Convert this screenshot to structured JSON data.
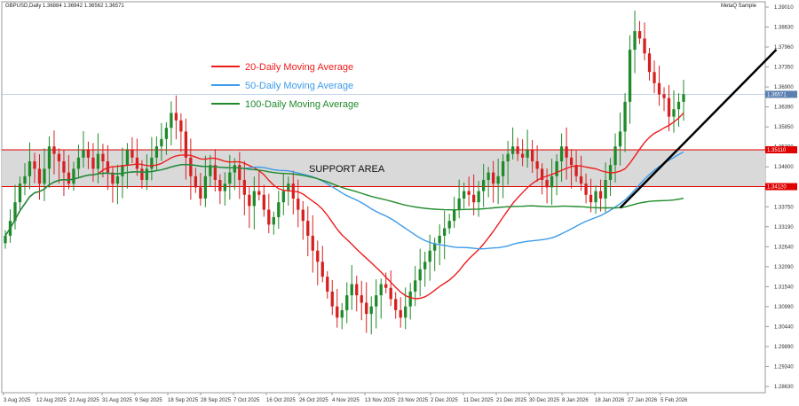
{
  "header": {
    "symbol_info": "GBPUSD,Daily  1.36884 1.36942 1.36562 1.36571",
    "watermark": "MetaQ Sample"
  },
  "legend": [
    {
      "label": "20-Daily Moving Average",
      "color": "#ee1c1c"
    },
    {
      "label": "50-Daily Moving Average",
      "color": "#3d9be9"
    },
    {
      "label": "100-Daily Moving Average",
      "color": "#1f8a2a"
    }
  ],
  "support": {
    "label": "SUPPORT AREA",
    "upper_tag": "1.35110",
    "lower_tag": "1.34120",
    "upper": 1.3511,
    "lower": 1.3412
  },
  "price_tag": "1.36571",
  "colors": {
    "bull": "#1f8a2a",
    "bear": "#d62020",
    "support_line": "#e00000",
    "support_fill": "#d9d9d9",
    "trendline": "#000000"
  },
  "chart_data": {
    "type": "candlestick",
    "title": "GBPUSD,Daily",
    "ylim": [
      1.2863,
      1.3904
    ],
    "y_ticks": [
      "1.39010",
      "1.38630",
      "1.37960",
      "1.37350",
      "1.36900",
      "1.36390",
      "1.35850",
      "1.35300",
      "1.34800",
      "1.34460",
      "1.33750",
      "1.33190",
      "1.32640",
      "1.32090",
      "1.31540",
      "1.30990",
      "1.30440",
      "1.29890",
      "1.29340",
      "1.28630"
    ],
    "x_ticks": [
      "3 Aug 2025",
      "12 Aug 2025",
      "21 Aug 2025",
      "31 Aug 2025",
      "9 Sep 2025",
      "18 Sep 2025",
      "28 Sep 2025",
      "7 Oct 2025",
      "16 Oct 2025",
      "26 Oct 2025",
      "4 Nov 2025",
      "13 Nov 2025",
      "23 Nov 2025",
      "2 Dec 2025",
      "11 Dec 2025",
      "21 Dec 2025",
      "30 Dec 2025",
      "8 Jan 2026",
      "18 Jan 2026",
      "27 Jan 2026",
      "5 Feb 2026"
    ],
    "closes": [
      1.328,
      1.332,
      1.337,
      1.342,
      1.344,
      1.348,
      1.346,
      1.342,
      1.346,
      1.352,
      1.35,
      1.348,
      1.345,
      1.342,
      1.346,
      1.349,
      1.351,
      1.349,
      1.346,
      1.35,
      1.348,
      1.345,
      1.342,
      1.344,
      1.347,
      1.351,
      1.349,
      1.346,
      1.343,
      1.346,
      1.349,
      1.352,
      1.354,
      1.357,
      1.361,
      1.359,
      1.356,
      1.349,
      1.344,
      1.341,
      1.338,
      1.344,
      1.347,
      1.343,
      1.34,
      1.342,
      1.345,
      1.347,
      1.343,
      1.339,
      1.336,
      1.34,
      1.339,
      1.335,
      1.331,
      1.333,
      1.337,
      1.34,
      1.342,
      1.338,
      1.335,
      1.332,
      1.328,
      1.324,
      1.321,
      1.317,
      1.313,
      1.309,
      1.306,
      1.308,
      1.312,
      1.315,
      1.312,
      1.31,
      1.307,
      1.309,
      1.312,
      1.315,
      1.314,
      1.311,
      1.308,
      1.306,
      1.309,
      1.313,
      1.316,
      1.319,
      1.321,
      1.324,
      1.326,
      1.328,
      1.33,
      1.332,
      1.335,
      1.338,
      1.34,
      1.339,
      1.337,
      1.34,
      1.343,
      1.345,
      1.342,
      1.344,
      1.348,
      1.35,
      1.352,
      1.35,
      1.349,
      1.351,
      1.348,
      1.346,
      1.343,
      1.341,
      1.344,
      1.348,
      1.352,
      1.349,
      1.347,
      1.344,
      1.342,
      1.339,
      1.337,
      1.34,
      1.338,
      1.343,
      1.347,
      1.352,
      1.356,
      1.364,
      1.378,
      1.383,
      1.381,
      1.377,
      1.372,
      1.369,
      1.366,
      1.365,
      1.36,
      1.362,
      1.364,
      1.366
    ],
    "ma_series": [
      {
        "name": "20-Daily Moving Average",
        "period": 20
      },
      {
        "name": "50-Daily Moving Average",
        "period": 50
      },
      {
        "name": "100-Daily Moving Average",
        "period": 100
      }
    ],
    "trendline": {
      "from": {
        "bar": 126,
        "price": 1.3355
      },
      "to": {
        "bar": 158,
        "price": 1.378
      }
    }
  }
}
